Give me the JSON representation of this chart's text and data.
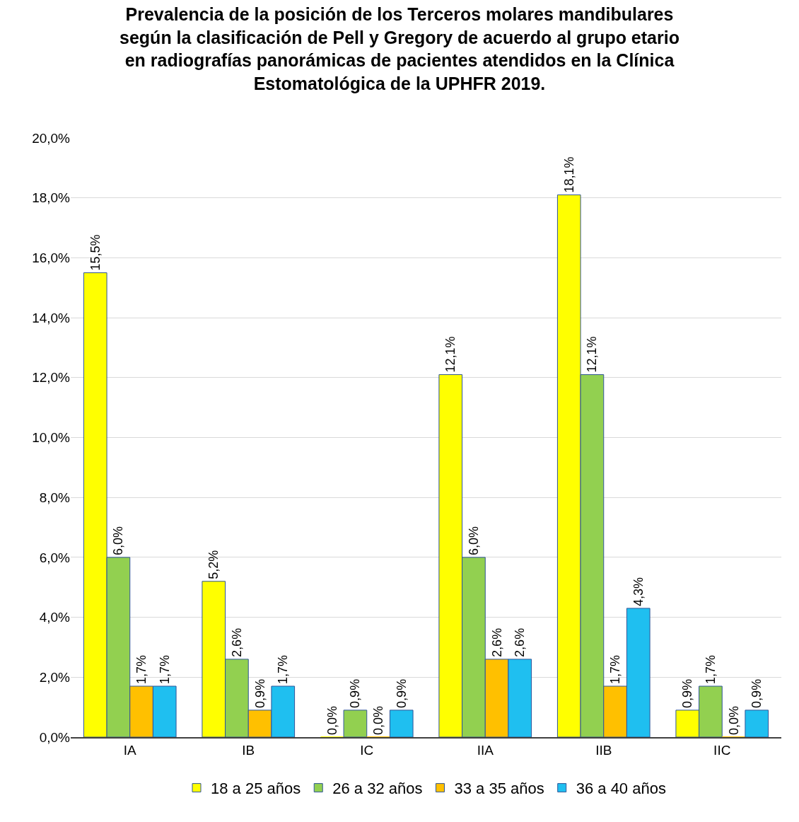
{
  "chart_data": {
    "type": "bar",
    "title": "Prevalencia de la posición de los Terceros molares mandibulares\nsegún la clasificación de Pell y Gregory de acuerdo al grupo etario\nen radiografías panorámicas de pacientes atendidos en la Clínica\nEstomatológica de la UPHFR 2019.",
    "categories": [
      "IA",
      "IB",
      "IC",
      "IIA",
      "IIB",
      "IIC"
    ],
    "series": [
      {
        "name": "18 a 25 años",
        "color": "#ffff00",
        "values": [
          15.5,
          5.2,
          0.0,
          12.1,
          18.1,
          0.9
        ],
        "value_labels": [
          "15,5%",
          "5,2%",
          "0,0%",
          "12,1%",
          "18,1%",
          "0,9%"
        ]
      },
      {
        "name": "26 a 32 años",
        "color": "#92d050",
        "values": [
          6.0,
          2.6,
          0.9,
          6.0,
          12.1,
          1.7
        ],
        "value_labels": [
          "6,0%",
          "2,6%",
          "0,9%",
          "6,0%",
          "12,1%",
          "1,7%"
        ]
      },
      {
        "name": "33 a 35 años",
        "color": "#ffc000",
        "values": [
          1.7,
          0.9,
          0.0,
          2.6,
          1.7,
          0.0
        ],
        "value_labels": [
          "1,7%",
          "0,9%",
          "0,0%",
          "2,6%",
          "1,7%",
          "0,0%"
        ]
      },
      {
        "name": "36 a 40 años",
        "color": "#1fbff0",
        "values": [
          1.7,
          1.7,
          0.9,
          2.6,
          4.3,
          0.9
        ],
        "value_labels": [
          "1,7%",
          "1,7%",
          "0,9%",
          "2,6%",
          "4,3%",
          "0,9%"
        ]
      }
    ],
    "ylim": [
      0,
      20
    ],
    "yticks": [
      {
        "value": 0,
        "label": "0,0%"
      },
      {
        "value": 2,
        "label": "2,0%"
      },
      {
        "value": 4,
        "label": "4,0%"
      },
      {
        "value": 6,
        "label": "6,0%"
      },
      {
        "value": 8,
        "label": "8,0%"
      },
      {
        "value": 10,
        "label": "10,0%"
      },
      {
        "value": 12,
        "label": "12,0%"
      },
      {
        "value": 14,
        "label": "14,0%"
      },
      {
        "value": 16,
        "label": "16,0%"
      },
      {
        "value": 18,
        "label": "18,0%"
      },
      {
        "value": 20,
        "label": "20,0%"
      }
    ],
    "grid": "y",
    "legend": "bottom"
  }
}
